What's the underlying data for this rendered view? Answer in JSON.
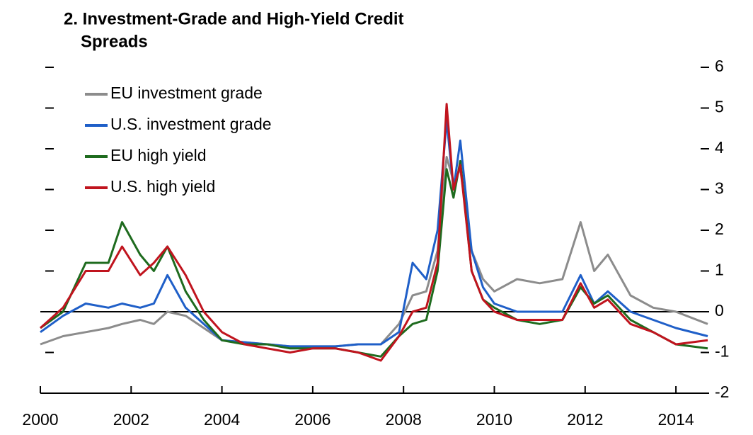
{
  "chart_data": {
    "type": "line",
    "title": [
      "2. Investment-Grade and High-Yield Credit",
      "Spreads"
    ],
    "x": [
      2000,
      2000.5,
      2001,
      2001.5,
      2001.8,
      2002.2,
      2002.5,
      2002.8,
      2003.2,
      2003.6,
      2004,
      2004.5,
      2005,
      2005.5,
      2006,
      2006.5,
      2007,
      2007.5,
      2007.9,
      2008.2,
      2008.5,
      2008.75,
      2008.95,
      2009.1,
      2009.25,
      2009.5,
      2009.75,
      2010,
      2010.5,
      2011,
      2011.5,
      2011.9,
      2012.2,
      2012.5,
      2013,
      2013.5,
      2014,
      2014.7
    ],
    "series": [
      {
        "name": "EU investment grade",
        "color": "#8c8c8c",
        "values": [
          -0.8,
          -0.6,
          -0.5,
          -0.4,
          -0.3,
          -0.2,
          -0.3,
          0.0,
          -0.1,
          -0.4,
          -0.7,
          -0.75,
          -0.8,
          -0.85,
          -0.85,
          -0.85,
          -0.8,
          -0.8,
          -0.3,
          0.4,
          0.5,
          1.5,
          3.8,
          3.2,
          3.5,
          1.5,
          0.8,
          0.5,
          0.8,
          0.7,
          0.8,
          2.2,
          1.0,
          1.4,
          0.4,
          0.1,
          0.0,
          -0.3
        ]
      },
      {
        "name": "U.S. investment grade",
        "color": "#1f5fc8",
        "values": [
          -0.5,
          -0.1,
          0.2,
          0.1,
          0.2,
          0.1,
          0.2,
          0.9,
          0.1,
          -0.3,
          -0.7,
          -0.75,
          -0.8,
          -0.85,
          -0.85,
          -0.85,
          -0.8,
          -0.8,
          -0.5,
          1.2,
          0.8,
          2.0,
          4.7,
          3.0,
          4.2,
          1.5,
          0.6,
          0.2,
          0.0,
          0.0,
          0.0,
          0.9,
          0.2,
          0.5,
          0.0,
          -0.2,
          -0.4,
          -0.6
        ]
      },
      {
        "name": "EU high yield",
        "color": "#1e6b1e",
        "values": [
          -0.4,
          0.0,
          1.2,
          1.2,
          2.2,
          1.4,
          1.0,
          1.6,
          0.5,
          -0.2,
          -0.7,
          -0.8,
          -0.8,
          -0.9,
          -0.9,
          -0.9,
          -1.0,
          -1.1,
          -0.6,
          -0.3,
          -0.2,
          1.0,
          3.5,
          2.8,
          3.7,
          1.0,
          0.3,
          0.1,
          -0.2,
          -0.3,
          -0.2,
          0.6,
          0.2,
          0.4,
          -0.2,
          -0.5,
          -0.8,
          -0.9
        ]
      },
      {
        "name": "U.S. high yield",
        "color": "#c0141e",
        "values": [
          -0.4,
          0.1,
          1.0,
          1.0,
          1.6,
          0.9,
          1.2,
          1.6,
          0.9,
          0.0,
          -0.5,
          -0.8,
          -0.9,
          -1.0,
          -0.9,
          -0.9,
          -1.0,
          -1.2,
          -0.6,
          0.0,
          0.1,
          1.2,
          5.1,
          3.0,
          3.6,
          1.0,
          0.3,
          0.0,
          -0.2,
          -0.2,
          -0.2,
          0.7,
          0.1,
          0.3,
          -0.3,
          -0.5,
          -0.8,
          -0.7
        ]
      }
    ],
    "xlim": [
      2000,
      2014.7
    ],
    "xticks": [
      2000,
      2002,
      2004,
      2006,
      2008,
      2010,
      2012,
      2014
    ],
    "ylim": [
      -2,
      6
    ],
    "yticks": [
      -2,
      -1,
      0,
      1,
      2,
      3,
      4,
      5,
      6
    ],
    "legend": "upper left"
  }
}
